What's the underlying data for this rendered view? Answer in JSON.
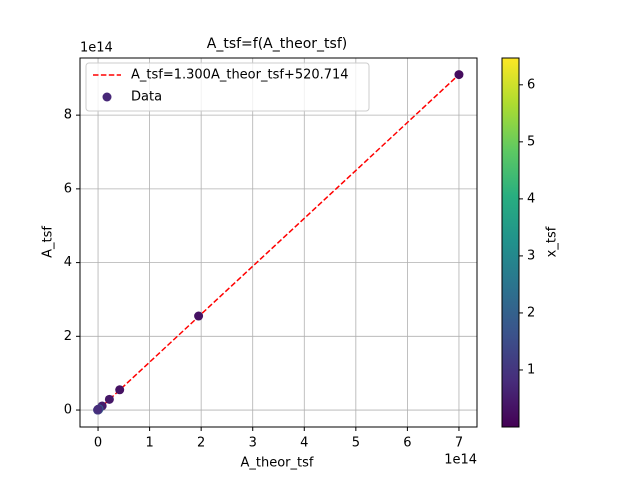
{
  "chart_data": {
    "type": "scatter",
    "title": "A_tsf=f(A_theor_tsf)",
    "x_label": "A_theor_tsf",
    "y_label": "A_tsf",
    "x_offset_label": "1e14",
    "y_offset_label": "1e14",
    "xlim": [
      -0.35,
      7.35
    ],
    "ylim": [
      -0.46,
      9.55
    ],
    "xticks": [
      0,
      1,
      2,
      3,
      4,
      5,
      6,
      7
    ],
    "yticks": [
      0,
      2,
      4,
      6,
      8
    ],
    "grid": true,
    "legend": "upper left",
    "series": [
      {
        "name": "A_tsf=1.300A_theor_tsf+520.714",
        "type": "line",
        "color": "#ff0000",
        "dashed": true,
        "x": [
          0,
          7.0
        ],
        "values": [
          0,
          9.1
        ]
      },
      {
        "name": "Data",
        "type": "scatter",
        "color": "#482878",
        "x": [
          7.0,
          1.95,
          0.42,
          0.22,
          0.08,
          0.0,
          0.01,
          0.02,
          -0.01,
          0.0
        ],
        "values": [
          9.1,
          2.55,
          0.55,
          0.29,
          0.11,
          0.0,
          0.01,
          0.03,
          0.0,
          0.02
        ],
        "c": [
          0.2,
          0.3,
          0.3,
          0.4,
          0.5,
          0.6,
          1.5,
          2.0,
          1.2,
          0.8
        ]
      }
    ],
    "colorbar": {
      "label": "x_tsf",
      "colormap": "viridis",
      "lim": [
        0,
        6.47
      ],
      "ticks": [
        1,
        2,
        3,
        4,
        5,
        6
      ]
    }
  }
}
